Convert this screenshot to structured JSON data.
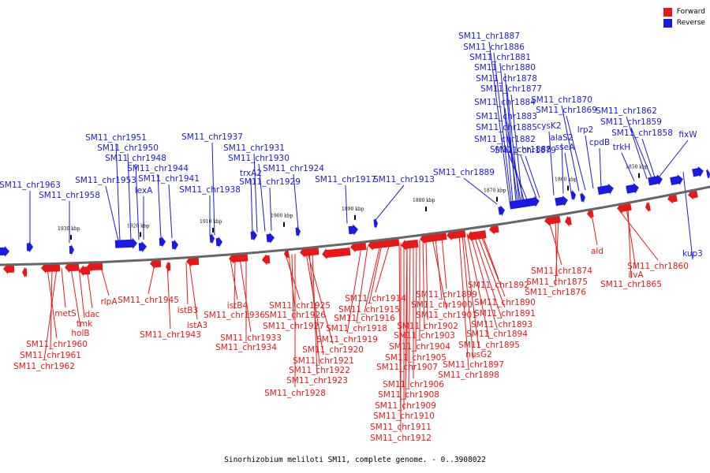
{
  "colors": {
    "forward": "#e81818",
    "reverse": "#1a1ae0",
    "backbone": "#666666"
  },
  "legend": [
    {
      "label": "Forward",
      "color": "#e81818"
    },
    {
      "label": "Reverse",
      "color": "#1a1ae0"
    }
  ],
  "caption": "Sinorhizobium meliloti SM11, complete genome. - 0..3908022",
  "ticks": [
    "1930 kbp",
    "1920 kbp",
    "1910 kbp",
    "1900 kbp",
    "1890 kbp",
    "1880 kbp",
    "1870 kbp",
    "1860 kbp",
    "1850 kbp"
  ],
  "reverse_genes": [
    "SM11_chr1963",
    "SM11_chr1958",
    "SM11_chr1953",
    "SM11_chr1951",
    "SM11_chr1950",
    "SM11_chr1948",
    "lexA",
    "SM11_chr1944",
    "SM11_chr1941",
    "SM11_chr1938",
    "SM11_chr1937",
    "trxA2",
    "SM11_chr1931",
    "SM11_chr1930",
    "SM11_chr1929",
    "SM11_chr1924",
    "SM11_chr1917",
    "SM11_chr1913",
    "SM11_chr1889",
    "SM11_chr1887",
    "SM11_chr1886",
    "SM11_chr1881",
    "SM11_chr1880",
    "SM11_chr1878",
    "SM11_chr1877",
    "SM11_chr1884",
    "SM11_chr1883",
    "SM11_chr1885",
    "SM11_chr1882",
    "SM11_chr1888",
    "SM11_chr1879",
    "cysK2",
    "alaS2",
    "sseA",
    "SM11_chr1870",
    "SM11_chr1869",
    "lrp2",
    "cpdB",
    "trkH",
    "SM11_chr1862",
    "SM11_chr1859",
    "SM11_chr1858",
    "fixW",
    "kup3"
  ],
  "forward_genes": [
    "SM11_chr1960",
    "SM11_chr1961",
    "SM11_chr1962",
    "metS",
    "holB",
    "tmk",
    "dac",
    "rlpA",
    "SM11_chr1945",
    "SM11_chr1943",
    "istB3",
    "istA3",
    "istB4",
    "SM11_chr1936",
    "SM11_chr1933",
    "SM11_chr1934",
    "SM11_chr1925",
    "SM11_chr1926",
    "SM11_chr1927",
    "SM11_chr1928",
    "SM11_chr1914",
    "SM11_chr1915",
    "SM11_chr1916",
    "SM11_chr1918",
    "SM11_chr1919",
    "SM11_chr1920",
    "SM11_chr1921",
    "SM11_chr1922",
    "SM11_chr1923",
    "SM11_chr1899",
    "SM11_chr1900",
    "SM11_chr1901",
    "SM11_chr1902",
    "SM11_chr1903",
    "SM11_chr1904",
    "SM11_chr1905",
    "SM11_chr1906",
    "SM11_chr1907",
    "SM11_chr1908",
    "SM11_chr1909",
    "SM11_chr1910",
    "SM11_chr1911",
    "SM11_chr1912",
    "SM11_chr1892",
    "SM11_chr1890",
    "SM11_chr1891",
    "SM11_chr1893",
    "SM11_chr1894",
    "SM11_chr1895",
    "nusG2",
    "SM11_chr1897",
    "SM11_chr1898",
    "SM11_chr1874",
    "SM11_chr1875",
    "SM11_chr1876",
    "ald",
    "SM11_chr1860",
    "ilvA",
    "SM11_chr1865"
  ]
}
